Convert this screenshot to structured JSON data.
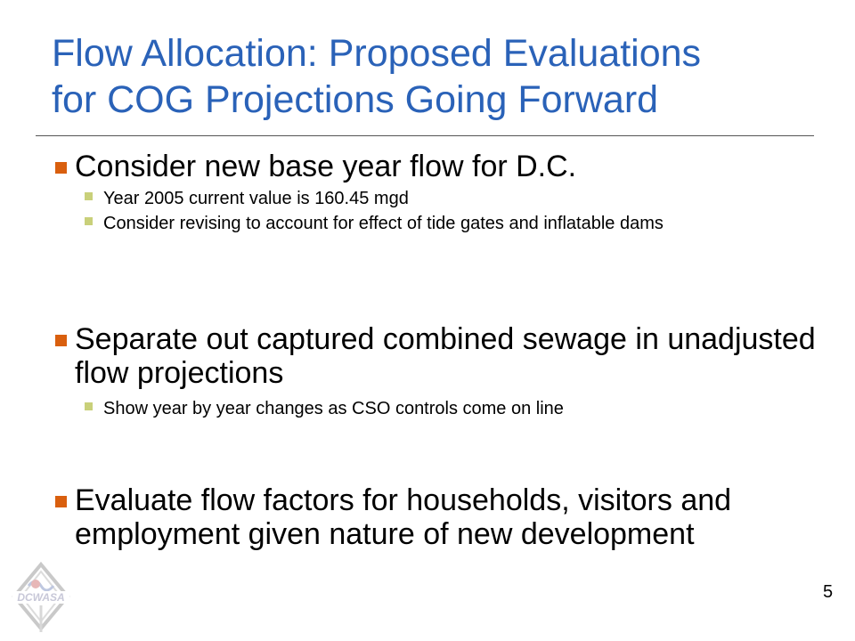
{
  "slide": {
    "title_line1": "Flow Allocation: Proposed Evaluations",
    "title_line2": "for COG Projections Going Forward",
    "bullets": [
      {
        "text": "Consider new base year flow for D.C.",
        "sub": [
          "Year 2005 current value is 160.45 mgd",
          "Consider revising to account for effect of tide gates and inflatable dams"
        ]
      },
      {
        "text": "Separate out captured combined sewage in unadjusted flow projections",
        "sub": [
          "Show year by year changes as CSO controls come on line"
        ]
      },
      {
        "text": "Evaluate flow factors for households, visitors and employment given nature of new development",
        "sub": []
      }
    ],
    "page_number": "5",
    "logo_text": "DCWASA",
    "colors": {
      "title": "#2a62b8",
      "bullet_mark": "#d95f0e",
      "sub_bullet_mark": "#c9d07a"
    }
  }
}
